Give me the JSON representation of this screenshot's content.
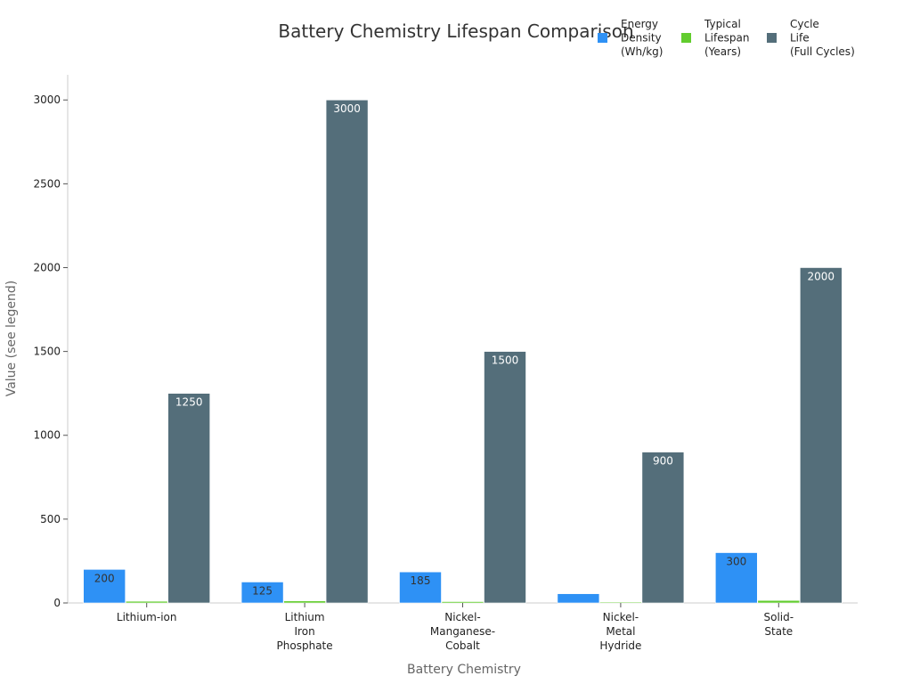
{
  "chart_data": {
    "type": "bar",
    "title": "Battery Chemistry Lifespan Comparison",
    "xlabel": "Battery Chemistry",
    "ylabel": "Value (see legend)",
    "categories": [
      [
        "Lithium-ion"
      ],
      [
        "Lithium",
        "Iron",
        "Phosphate"
      ],
      [
        "Nickel-",
        "Manganese-",
        "Cobalt"
      ],
      [
        "Nickel-",
        "Metal",
        "Hydride"
      ],
      [
        "Solid-",
        "State"
      ]
    ],
    "series": [
      {
        "name": [
          "Energy",
          "Density",
          "(Wh/kg)"
        ],
        "color": "#2e91f5",
        "values": [
          200,
          125,
          185,
          55,
          300
        ],
        "labels": [
          "200",
          "125",
          "185",
          "",
          "300"
        ]
      },
      {
        "name": [
          "Typical",
          "Lifespan",
          "(Years)"
        ],
        "color": "#62cc2e",
        "values": [
          10,
          12,
          8,
          5,
          15
        ],
        "labels": [
          "",
          "",
          "",
          "",
          ""
        ]
      },
      {
        "name": [
          "Cycle",
          "Life",
          "(Full Cycles)"
        ],
        "color": "#546e7a",
        "values": [
          1250,
          3000,
          1500,
          900,
          2000
        ],
        "labels": [
          "1250",
          "3000",
          "1500",
          "900",
          "2000"
        ]
      }
    ],
    "ylim": [
      0,
      3150
    ],
    "yticks": [
      0,
      500,
      1000,
      1500,
      2000,
      2500,
      3000
    ],
    "grid": false,
    "legend_position": "top-right"
  }
}
